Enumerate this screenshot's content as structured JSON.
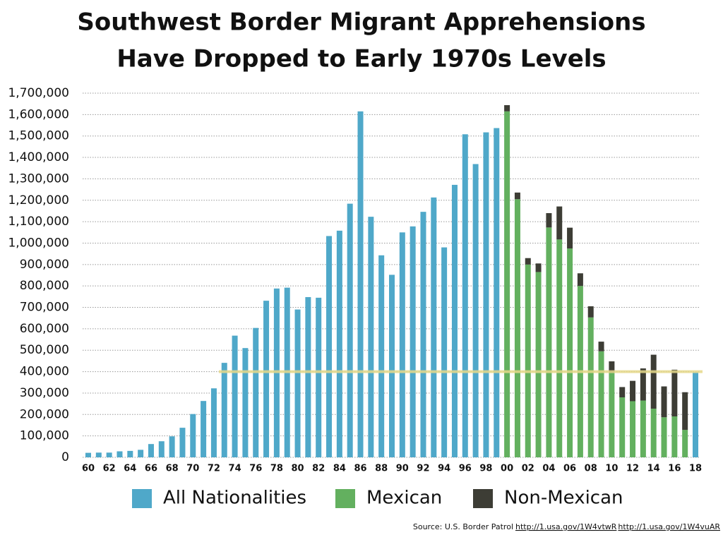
{
  "chart_data": {
    "type": "bar",
    "stacked": true,
    "title": [
      "Southwest Border Migrant Apprehensions",
      "Have Dropped to Early 1970s Levels"
    ],
    "categories": [
      "60",
      null,
      "62",
      null,
      "64",
      null,
      "66",
      null,
      "68",
      null,
      "70",
      null,
      "72",
      null,
      "74",
      null,
      "76",
      null,
      "78",
      null,
      "80",
      null,
      "82",
      null,
      "84",
      null,
      "86",
      null,
      "88",
      null,
      "90",
      null,
      "92",
      null,
      "94",
      null,
      "96",
      null,
      "98",
      null,
      "00",
      null,
      "02",
      null,
      "04",
      null,
      "06",
      null,
      "08",
      null,
      "10",
      null,
      "12",
      null,
      "14",
      null,
      "16",
      null,
      "18"
    ],
    "series": [
      {
        "name": "All Nationalities",
        "color": "#4fa8c9",
        "values": [
          21000,
          22000,
          22000,
          28000,
          30000,
          35000,
          62000,
          75000,
          98000,
          138000,
          202000,
          263000,
          322000,
          441000,
          568000,
          510000,
          604000,
          731000,
          788000,
          792000,
          690000,
          748000,
          745000,
          1033000,
          1058000,
          1184000,
          1615000,
          1123000,
          943000,
          852000,
          1050000,
          1078000,
          1146000,
          1213000,
          980000,
          1272000,
          1508000,
          1369000,
          1517000,
          1537000,
          null,
          null,
          null,
          null,
          null,
          null,
          null,
          null,
          null,
          null,
          null,
          null,
          null,
          null,
          null,
          null,
          null,
          null,
          397000
        ]
      },
      {
        "name": "Mexican",
        "color": "#63b05f",
        "values": [
          null,
          null,
          null,
          null,
          null,
          null,
          null,
          null,
          null,
          null,
          null,
          null,
          null,
          null,
          null,
          null,
          null,
          null,
          null,
          null,
          null,
          null,
          null,
          null,
          null,
          null,
          null,
          null,
          null,
          null,
          null,
          null,
          null,
          null,
          null,
          null,
          null,
          null,
          null,
          null,
          1615000,
          1205000,
          900000,
          865000,
          1073000,
          1017000,
          975000,
          800000,
          653000,
          495000,
          396000,
          280000,
          262000,
          265000,
          227000,
          187000,
          191000,
          128000,
          null
        ]
      },
      {
        "name": "Non-Mexican",
        "color": "#3d3d35",
        "values": [
          null,
          null,
          null,
          null,
          null,
          null,
          null,
          null,
          null,
          null,
          null,
          null,
          null,
          null,
          null,
          null,
          null,
          null,
          null,
          null,
          null,
          null,
          null,
          null,
          null,
          null,
          null,
          null,
          null,
          null,
          null,
          null,
          null,
          null,
          null,
          null,
          null,
          null,
          null,
          null,
          29000,
          31000,
          30000,
          40000,
          67000,
          154000,
          97000,
          59000,
          52000,
          45000,
          52000,
          48000,
          95000,
          150000,
          252000,
          144000,
          218000,
          176000,
          null
        ]
      }
    ],
    "ylim": [
      0,
      1700000
    ],
    "yticks": [
      0,
      {
        "value": 100000,
        "label": "100,000"
      },
      {
        "value": 200000,
        "label": "200,000"
      },
      {
        "value": 300000,
        "label": "300,000"
      },
      {
        "value": 400000,
        "label": "400,000"
      },
      {
        "value": 500000,
        "label": "500,000"
      },
      {
        "value": 600000,
        "label": "600,000"
      },
      {
        "value": 700000,
        "label": "700,000"
      },
      {
        "value": 800000,
        "label": "800,000"
      },
      {
        "value": 900000,
        "label": "900,000"
      },
      {
        "value": 1000000,
        "label": "1,000,000"
      },
      {
        "value": 1100000,
        "label": "1,100,000"
      },
      {
        "value": 1200000,
        "label": "1,200,000"
      },
      {
        "value": 1300000,
        "label": "1,300,000"
      },
      {
        "value": 1400000,
        "label": "1,400,000"
      },
      {
        "value": 1500000,
        "label": "1,500,000"
      },
      {
        "value": 1600000,
        "label": "1,600,000"
      },
      {
        "value": 1700000,
        "label": "1,700,000"
      }
    ],
    "grid": true,
    "reference_line": {
      "value": 400000,
      "color": "#e6d98a"
    },
    "source": "Source: U.S. Border Patrol",
    "links": [
      "http://1.usa.gov/1W4vtwR",
      "http://1.usa.gov/1W4vuAR"
    ]
  }
}
